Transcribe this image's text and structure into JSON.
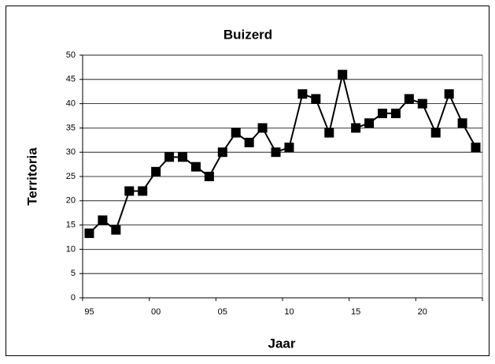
{
  "chart_data": {
    "type": "line",
    "title": "Buizerd",
    "xlabel": "Jaar",
    "ylabel": "Territoria",
    "categories": [
      "95",
      null,
      null,
      null,
      null,
      "00",
      null,
      null,
      null,
      null,
      "05",
      null,
      null,
      null,
      null,
      "10",
      null,
      null,
      null,
      null,
      "15",
      null,
      null,
      null,
      null,
      "20",
      null,
      null,
      null,
      null
    ],
    "series": [
      {
        "name": "Buizerd",
        "color": "#000000",
        "values": [
          13.3,
          16,
          14,
          22,
          22,
          26,
          29,
          29,
          27,
          25,
          30,
          34,
          32,
          35,
          30,
          31,
          42,
          41,
          34,
          46,
          35,
          36,
          38,
          38,
          41,
          40,
          34,
          42,
          36,
          31
        ]
      }
    ],
    "ylim": [
      0,
      50
    ],
    "yticks": [
      0,
      5,
      10,
      15,
      20,
      25,
      30,
      35,
      40,
      45,
      50
    ],
    "grid": true,
    "legend": false
  }
}
